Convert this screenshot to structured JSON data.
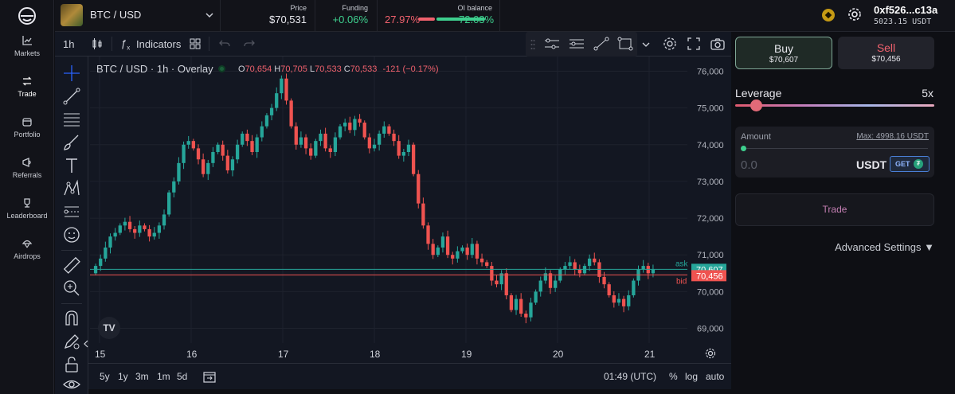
{
  "nav": {
    "items": [
      {
        "label": "Markets",
        "icon": "chart-icon"
      },
      {
        "label": "Trade",
        "icon": "swap-icon"
      },
      {
        "label": "Portfolio",
        "icon": "wallet-icon"
      },
      {
        "label": "Referrals",
        "icon": "megaphone-icon"
      },
      {
        "label": "Leaderboard",
        "icon": "trophy-icon"
      },
      {
        "label": "Airdrops",
        "icon": "airdrop-icon"
      }
    ]
  },
  "header": {
    "market": "BTC / USD",
    "price_label": "Price",
    "price_value": "$70,531",
    "funding_label": "Funding",
    "funding_value": "+0.06%",
    "oi_label": "OI balance",
    "oi_short": "27.97%",
    "oi_long": "72.03%",
    "oi_long_fraction": 0.7203,
    "wallet_address": "0xf526...c13a",
    "wallet_balance": "5023.15 USDT"
  },
  "chart_toolbar": {
    "interval": "1h",
    "indicators_label": "Indicators"
  },
  "legend": {
    "title": "BTC / USD · 1h · Overlay",
    "o_label": "O",
    "o_value": "70,654",
    "h_label": "H",
    "h_value": "70,705",
    "l_label": "L",
    "l_value": "70,533",
    "c_label": "C",
    "c_value": "70,533",
    "change": "-121 (−0.17%)"
  },
  "chart_data": {
    "type": "candlestick",
    "ylim": [
      68600,
      76400
    ],
    "y_ticks": [
      "76,000",
      "75,000",
      "74,000",
      "73,000",
      "72,000",
      "71,000",
      "70,000",
      "69,000"
    ],
    "y_tick_values": [
      76000,
      75000,
      74000,
      73000,
      72000,
      71000,
      70000,
      69000
    ],
    "x_ticks": [
      "15",
      "16",
      "17",
      "18",
      "19",
      "20",
      "21"
    ],
    "ask": {
      "label": "ask",
      "value": "70,607",
      "price": 70607
    },
    "bid": {
      "label": "bid",
      "value": "70,456",
      "price": 70456
    },
    "closes": [
      70700,
      70900,
      71200,
      71500,
      71600,
      71800,
      71900,
      71700,
      71600,
      71800,
      71700,
      71500,
      71600,
      71800,
      72100,
      72700,
      73000,
      73500,
      74000,
      74100,
      73900,
      73600,
      73200,
      73500,
      73800,
      74000,
      73700,
      73300,
      73600,
      74000,
      74300,
      74100,
      73800,
      74200,
      74500,
      74800,
      75000,
      75400,
      75800,
      75200,
      74500,
      74000,
      74200,
      73900,
      73700,
      74100,
      74300,
      73900,
      73800,
      74200,
      74500,
      74600,
      74400,
      74700,
      74600,
      74200,
      73900,
      74000,
      74300,
      74500,
      74300,
      74100,
      73700,
      73800,
      74000,
      73200,
      72400,
      71800,
      71300,
      71000,
      71200,
      71500,
      71000,
      70900,
      71100,
      71200,
      71000,
      71300,
      70900,
      70800,
      70700,
      70300,
      70200,
      70500,
      69900,
      69500,
      69800,
      69400,
      69300,
      69700,
      70000,
      70300,
      70500,
      70100,
      70300,
      70600,
      70700,
      70800,
      70600,
      70500,
      70700,
      70900,
      70800,
      70400,
      70200,
      69900,
      69700,
      69800,
      69600,
      69900,
      70300,
      70600,
      70700,
      70500,
      70600
    ],
    "first_open": 70500
  },
  "bottom_toolbar": {
    "ranges": [
      "5y",
      "1y",
      "3m",
      "1m",
      "5d"
    ],
    "time": "01:49 (UTC)",
    "pct": "%",
    "log": "log",
    "auto": "auto"
  },
  "trade_panel": {
    "buy_label": "Buy",
    "buy_price": "$70,607",
    "sell_label": "Sell",
    "sell_price": "$70,456",
    "leverage_label": "Leverage",
    "leverage_value": "5x",
    "amount_label": "Amount",
    "max_label": "Max: 4998.16 USDT",
    "amount_value": "0.0",
    "currency": "USDT",
    "get_label": "GET",
    "trade_button": "Trade",
    "advanced": "Advanced Settings ▼"
  }
}
